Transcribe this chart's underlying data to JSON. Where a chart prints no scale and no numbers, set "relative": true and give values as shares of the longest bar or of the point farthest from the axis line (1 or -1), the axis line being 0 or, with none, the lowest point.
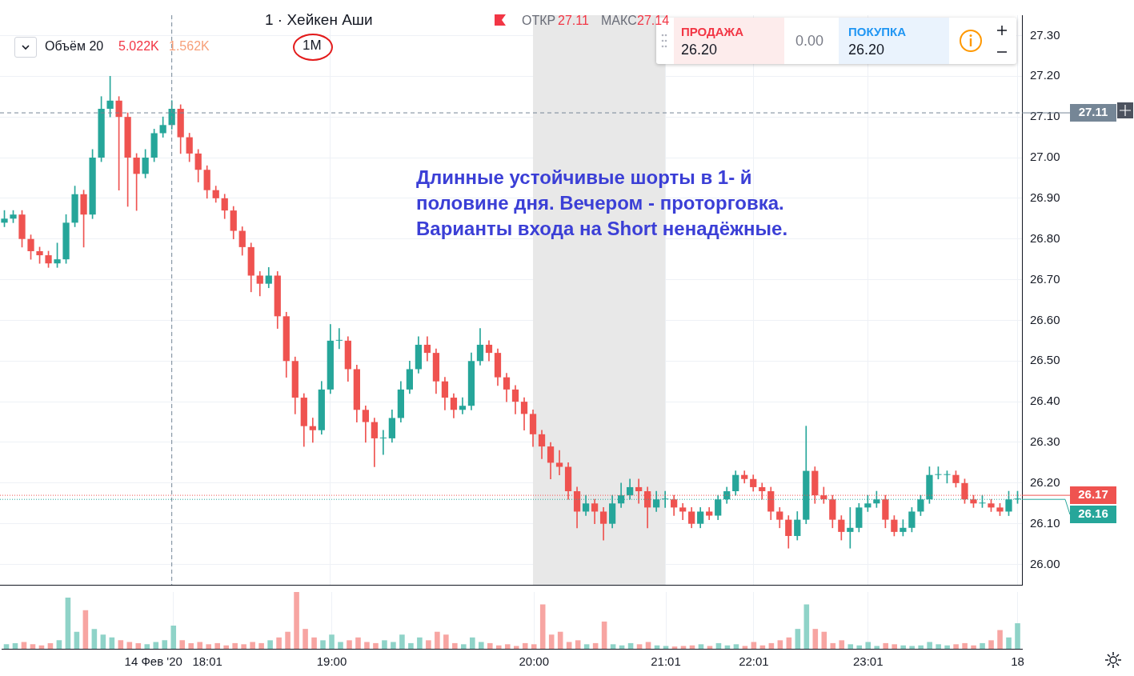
{
  "chart_data": [
    {
      "type": "candlestick",
      "categories": [
        null,
        null,
        null,
        null,
        null,
        null,
        null,
        null,
        null,
        null,
        null,
        null,
        null,
        null,
        null,
        null,
        null,
        null,
        null,
        "14 Фев '20   18:01",
        null,
        null,
        null,
        null,
        null,
        null,
        null,
        null,
        null,
        null,
        null,
        null,
        null,
        null,
        null,
        null,
        null,
        "19:00",
        null,
        null,
        null,
        null,
        null,
        null,
        null,
        null,
        null,
        null,
        null,
        null,
        null,
        null,
        null,
        null,
        null,
        null,
        null,
        null,
        null,
        null,
        "20:00",
        null,
        null,
        null,
        null,
        null,
        null,
        null,
        null,
        null,
        null,
        null,
        null,
        null,
        null,
        "21:01",
        null,
        null,
        null,
        null,
        null,
        null,
        null,
        null,
        null,
        "22:01",
        null,
        null,
        null,
        null,
        null,
        null,
        null,
        null,
        null,
        null,
        null,
        null,
        "23:01",
        null,
        null,
        null,
        null,
        null,
        null,
        null,
        null,
        null,
        null,
        null,
        null,
        null,
        null,
        null,
        null,
        "18"
      ],
      "ohlc": [
        [
          26.84,
          26.87,
          26.83,
          26.85
        ],
        [
          26.85,
          26.87,
          26.84,
          26.86
        ],
        [
          26.86,
          26.87,
          26.78,
          26.8
        ],
        [
          26.8,
          26.81,
          26.75,
          26.77
        ],
        [
          26.77,
          26.78,
          26.74,
          26.76
        ],
        [
          26.76,
          26.77,
          26.73,
          26.74
        ],
        [
          26.74,
          26.79,
          26.73,
          26.75
        ],
        [
          26.75,
          26.86,
          26.74,
          26.84
        ],
        [
          26.84,
          26.93,
          26.83,
          26.91
        ],
        [
          26.91,
          26.92,
          26.78,
          26.86
        ],
        [
          26.86,
          27.02,
          26.85,
          27.0
        ],
        [
          27.0,
          27.15,
          26.99,
          27.12
        ],
        [
          27.12,
          27.2,
          27.1,
          27.14
        ],
        [
          27.14,
          27.15,
          26.92,
          27.1
        ],
        [
          27.1,
          27.11,
          26.88,
          27.0
        ],
        [
          27.0,
          27.01,
          26.87,
          26.96
        ],
        [
          26.96,
          27.02,
          26.95,
          27.0
        ],
        [
          27.0,
          27.07,
          26.99,
          27.06
        ],
        [
          27.06,
          27.1,
          27.05,
          27.08
        ],
        [
          27.08,
          27.14,
          27.07,
          27.12
        ],
        [
          27.12,
          27.13,
          27.01,
          27.05
        ],
        [
          27.05,
          27.06,
          26.99,
          27.01
        ],
        [
          27.01,
          27.02,
          26.94,
          26.97
        ],
        [
          26.97,
          26.98,
          26.9,
          26.92
        ],
        [
          26.92,
          26.93,
          26.89,
          26.9
        ],
        [
          26.9,
          26.91,
          26.85,
          26.87
        ],
        [
          26.87,
          26.88,
          26.8,
          26.82
        ],
        [
          26.82,
          26.83,
          26.76,
          26.78
        ],
        [
          26.78,
          26.79,
          26.67,
          26.71
        ],
        [
          26.71,
          26.72,
          26.66,
          26.69
        ],
        [
          26.69,
          26.73,
          26.68,
          26.71
        ],
        [
          26.71,
          26.72,
          26.58,
          26.61
        ],
        [
          26.61,
          26.62,
          26.46,
          26.5
        ],
        [
          26.5,
          26.51,
          26.37,
          26.41
        ],
        [
          26.41,
          26.42,
          26.29,
          26.34
        ],
        [
          26.34,
          26.36,
          26.3,
          26.33
        ],
        [
          26.33,
          26.45,
          26.32,
          26.43
        ],
        [
          26.43,
          26.59,
          26.42,
          26.55
        ],
        [
          26.55,
          26.58,
          26.53,
          26.55
        ],
        [
          26.55,
          26.56,
          26.45,
          26.48
        ],
        [
          26.48,
          26.49,
          26.35,
          26.38
        ],
        [
          26.38,
          26.39,
          26.3,
          26.35
        ],
        [
          26.35,
          26.36,
          26.24,
          26.31
        ],
        [
          26.31,
          26.33,
          26.27,
          26.31
        ],
        [
          26.31,
          26.38,
          26.3,
          26.36
        ],
        [
          26.36,
          26.45,
          26.35,
          26.43
        ],
        [
          26.43,
          26.5,
          26.42,
          26.48
        ],
        [
          26.48,
          26.56,
          26.47,
          26.54
        ],
        [
          26.54,
          26.56,
          26.5,
          26.52
        ],
        [
          26.52,
          26.53,
          26.42,
          26.45
        ],
        [
          26.45,
          26.46,
          26.38,
          26.41
        ],
        [
          26.41,
          26.42,
          26.36,
          26.38
        ],
        [
          26.38,
          26.41,
          26.37,
          26.39
        ],
        [
          26.39,
          26.52,
          26.38,
          26.5
        ],
        [
          26.5,
          26.58,
          26.49,
          26.54
        ],
        [
          26.54,
          26.55,
          26.5,
          26.52
        ],
        [
          26.52,
          26.53,
          26.44,
          26.46
        ],
        [
          26.46,
          26.47,
          26.4,
          26.43
        ],
        [
          26.43,
          26.44,
          26.37,
          26.4
        ],
        [
          26.4,
          26.41,
          26.33,
          26.37
        ],
        [
          26.37,
          26.38,
          26.29,
          26.32
        ],
        [
          26.32,
          26.33,
          26.26,
          26.29
        ],
        [
          26.29,
          26.3,
          26.21,
          26.25
        ],
        [
          26.25,
          26.28,
          26.22,
          26.24
        ],
        [
          26.24,
          26.25,
          26.16,
          26.18
        ],
        [
          26.18,
          26.19,
          26.09,
          26.13
        ],
        [
          26.13,
          26.17,
          26.12,
          26.15
        ],
        [
          26.15,
          26.16,
          26.1,
          26.13
        ],
        [
          26.13,
          26.14,
          26.06,
          26.1
        ],
        [
          26.1,
          26.17,
          26.09,
          26.15
        ],
        [
          26.15,
          26.2,
          26.14,
          26.17
        ],
        [
          26.17,
          26.21,
          26.16,
          26.19
        ],
        [
          26.19,
          26.21,
          26.15,
          26.18
        ],
        [
          26.18,
          26.19,
          26.09,
          26.14
        ],
        [
          26.14,
          26.18,
          26.13,
          26.16
        ],
        [
          26.16,
          26.18,
          26.14,
          26.16
        ],
        [
          26.16,
          26.17,
          26.12,
          26.14
        ],
        [
          26.14,
          26.15,
          26.11,
          26.13
        ],
        [
          26.13,
          26.14,
          26.09,
          26.1
        ],
        [
          26.1,
          26.14,
          26.09,
          26.13
        ],
        [
          26.13,
          26.14,
          26.11,
          26.12
        ],
        [
          26.12,
          26.17,
          26.11,
          26.16
        ],
        [
          26.16,
          26.19,
          26.15,
          26.18
        ],
        [
          26.18,
          26.23,
          26.17,
          26.22
        ],
        [
          26.22,
          26.23,
          26.2,
          26.21
        ],
        [
          26.21,
          26.22,
          26.18,
          26.19
        ],
        [
          26.19,
          26.2,
          26.16,
          26.18
        ],
        [
          26.18,
          26.19,
          26.11,
          26.13
        ],
        [
          26.13,
          26.14,
          26.09,
          26.11
        ],
        [
          26.11,
          26.12,
          26.04,
          26.07
        ],
        [
          26.07,
          26.13,
          26.06,
          26.11
        ],
        [
          26.11,
          26.34,
          26.1,
          26.23
        ],
        [
          26.23,
          26.24,
          26.15,
          26.17
        ],
        [
          26.17,
          26.19,
          26.15,
          26.16
        ],
        [
          26.16,
          26.17,
          26.09,
          26.11
        ],
        [
          26.11,
          26.12,
          26.06,
          26.08
        ],
        [
          26.08,
          26.14,
          26.04,
          26.09
        ],
        [
          26.09,
          26.15,
          26.08,
          26.14
        ],
        [
          26.14,
          26.17,
          26.13,
          26.15
        ],
        [
          26.15,
          26.18,
          26.14,
          26.16
        ],
        [
          26.16,
          26.17,
          26.09,
          26.11
        ],
        [
          26.11,
          26.12,
          26.07,
          26.08
        ],
        [
          26.08,
          26.11,
          26.07,
          26.09
        ],
        [
          26.09,
          26.14,
          26.08,
          26.13
        ],
        [
          26.13,
          26.17,
          26.12,
          26.16
        ],
        [
          26.16,
          26.24,
          26.15,
          26.22
        ],
        [
          26.22,
          26.24,
          26.21,
          26.22
        ],
        [
          26.22,
          26.23,
          26.2,
          26.22
        ],
        [
          26.22,
          26.23,
          26.19,
          26.2
        ],
        [
          26.2,
          26.21,
          26.15,
          26.16
        ],
        [
          26.16,
          26.17,
          26.14,
          26.15
        ],
        [
          26.15,
          26.17,
          26.14,
          26.15
        ],
        [
          26.15,
          26.16,
          26.13,
          26.14
        ],
        [
          26.14,
          26.15,
          26.12,
          26.13
        ],
        [
          26.13,
          26.18,
          26.12,
          26.16
        ],
        [
          26.16,
          26.18,
          26.15,
          26.16
        ]
      ],
      "colors": [
        "#26a69a",
        "#26a69a",
        "#ef5350",
        "#ef5350",
        "#ef5350",
        "#ef5350",
        "#26a69a",
        "#26a69a",
        "#26a69a",
        "#ef5350",
        "#26a69a",
        "#26a69a",
        "#26a69a",
        "#ef5350",
        "#ef5350",
        "#ef5350",
        "#26a69a",
        "#26a69a",
        "#26a69a",
        "#26a69a",
        "#ef5350",
        "#ef5350",
        "#ef5350",
        "#ef5350",
        "#ef5350",
        "#ef5350",
        "#ef5350",
        "#ef5350",
        "#ef5350",
        "#ef5350",
        "#26a69a",
        "#ef5350",
        "#ef5350",
        "#ef5350",
        "#ef5350",
        "#ef5350",
        "#26a69a",
        "#26a69a",
        "#26a69a",
        "#ef5350",
        "#ef5350",
        "#ef5350",
        "#ef5350",
        "#26a69a",
        "#26a69a",
        "#26a69a",
        "#26a69a",
        "#26a69a",
        "#ef5350",
        "#ef5350",
        "#ef5350",
        "#ef5350",
        "#26a69a",
        "#26a69a",
        "#26a69a",
        "#ef5350",
        "#ef5350",
        "#ef5350",
        "#ef5350",
        "#ef5350",
        "#ef5350",
        "#ef5350",
        "#ef5350",
        "#ef5350",
        "#ef5350",
        "#ef5350",
        "#26a69a",
        "#ef5350",
        "#ef5350",
        "#26a69a",
        "#26a69a",
        "#26a69a",
        "#ef5350",
        "#ef5350",
        "#26a69a",
        "#26a69a",
        "#ef5350",
        "#ef5350",
        "#ef5350",
        "#26a69a",
        "#ef5350",
        "#26a69a",
        "#26a69a",
        "#26a69a",
        "#ef5350",
        "#ef5350",
        "#ef5350",
        "#ef5350",
        "#ef5350",
        "#ef5350",
        "#26a69a",
        "#26a69a",
        "#ef5350",
        "#ef5350",
        "#ef5350",
        "#ef5350",
        "#26a69a",
        "#26a69a",
        "#26a69a",
        "#26a69a",
        "#ef5350",
        "#ef5350",
        "#26a69a",
        "#26a69a",
        "#26a69a",
        "#26a69a",
        "#26a69a",
        "#26a69a",
        "#ef5350",
        "#ef5350",
        "#ef5350",
        "#26a69a",
        "#ef5350",
        "#ef5350",
        "#26a69a",
        "#26a69a"
      ],
      "ylim": [
        25.95,
        27.35
      ],
      "yticks": [
        {
          "value": 26,
          "label": "26.00"
        },
        {
          "value": 26.1,
          "label": "26.10"
        },
        {
          "value": 26.2,
          "label": "26.20"
        },
        {
          "value": 26.3,
          "label": "26.30"
        },
        {
          "value": 26.4,
          "label": "26.40"
        },
        {
          "value": 26.5,
          "label": "26.50"
        },
        {
          "value": 26.6,
          "label": "26.60"
        },
        {
          "value": 26.7,
          "label": "26.70"
        },
        {
          "value": 26.8,
          "label": "26.80"
        },
        {
          "value": 26.9,
          "label": "26.90"
        },
        {
          "value": 27,
          "label": "27.00"
        },
        {
          "value": 27.1,
          "label": "27.10"
        },
        {
          "value": 27.2,
          "label": "27.20"
        },
        {
          "value": 27.3,
          "label": "27.30"
        }
      ],
      "grid": true,
      "tick_labels": "y",
      "ref_lines": [
        {
          "axis": "y",
          "value": 27.11,
          "label": "27.11",
          "color": "#758696",
          "line_style": "dashed"
        },
        {
          "axis": "x",
          "value": "14 Фев '20   18:01",
          "color": "#758696",
          "line_style": "dashed"
        },
        {
          "axis": "y",
          "value": 26.17,
          "label": "26.17",
          "color": "#ef5350",
          "line_style": "dotted"
        },
        {
          "axis": "y",
          "value": 26.16,
          "label": "26.16",
          "color": "#26a69a",
          "line_style": "dotted"
        }
      ],
      "bands": [
        {
          "axis": "x",
          "from": "20:00",
          "to": "21:01",
          "color": "#e8e8e8"
        }
      ],
      "annotations": [
        "1 · Хейкен Аши",
        "ОТКР",
        "27.11",
        "МАКС",
        "27.14",
        "Объём 20",
        "5.022K",
        "1.562K",
        "1M",
        "ПРОДАЖА",
        "26.20",
        "0.00",
        "ПОКУПКА",
        "26.20",
        "Длинные устойчивые шорты в 1- й половине дня. Вечером - проторговка. Варианты входа на Short ненадёжные."
      ]
    },
    {
      "type": "bar",
      "relative": true,
      "tick_labels": "x",
      "grid": "x",
      "categories": [
        null,
        null,
        null,
        null,
        null,
        null,
        null,
        null,
        null,
        null,
        null,
        null,
        null,
        null,
        null,
        null,
        null,
        null,
        null,
        "14 Фев '20   18:01",
        null,
        null,
        null,
        null,
        null,
        null,
        null,
        null,
        null,
        null,
        null,
        null,
        null,
        null,
        null,
        null,
        null,
        "19:00",
        null,
        null,
        null,
        null,
        null,
        null,
        null,
        null,
        null,
        null,
        null,
        null,
        null,
        null,
        null,
        null,
        null,
        null,
        null,
        null,
        null,
        null,
        "20:00",
        null,
        null,
        null,
        null,
        null,
        null,
        null,
        null,
        null,
        null,
        null,
        null,
        null,
        null,
        "21:01",
        null,
        null,
        null,
        null,
        null,
        null,
        null,
        null,
        null,
        "22:01",
        null,
        null,
        null,
        null,
        null,
        null,
        null,
        null,
        null,
        null,
        null,
        null,
        "23:01",
        null,
        null,
        null,
        null,
        null,
        null,
        null,
        null,
        null,
        null,
        null,
        null,
        null,
        null,
        null,
        null,
        "18"
      ],
      "values": [
        0.08,
        0.1,
        0.12,
        0.08,
        0.06,
        0.1,
        0.15,
        0.9,
        0.3,
        0.68,
        0.35,
        0.25,
        0.2,
        0.15,
        0.12,
        0.1,
        0.08,
        0.12,
        0.15,
        0.41,
        0.15,
        0.1,
        0.12,
        0.08,
        0.1,
        0.06,
        0.1,
        0.08,
        0.12,
        0.1,
        0.15,
        0.2,
        0.3,
        1.0,
        0.35,
        0.2,
        0.15,
        0.25,
        0.12,
        0.15,
        0.2,
        0.12,
        0.1,
        0.15,
        0.12,
        0.25,
        0.1,
        0.2,
        0.15,
        0.3,
        0.25,
        0.1,
        0.08,
        0.2,
        0.12,
        0.1,
        0.06,
        0.08,
        0.05,
        0.1,
        0.08,
        0.78,
        0.25,
        0.3,
        0.12,
        0.15,
        0.08,
        0.1,
        0.48,
        0.08,
        0.06,
        0.1,
        0.08,
        0.12,
        0.06,
        0.05,
        0.04,
        0.05,
        0.06,
        0.08,
        0.05,
        0.1,
        0.06,
        0.08,
        0.05,
        0.12,
        0.06,
        0.1,
        0.15,
        0.2,
        0.35,
        0.78,
        0.35,
        0.3,
        0.1,
        0.15,
        0.08,
        0.06,
        0.12,
        0.05,
        0.1,
        0.08,
        0.06,
        0.05,
        0.06,
        0.12,
        0.08,
        0.06,
        0.08,
        0.1,
        0.06,
        0.1,
        0.15,
        0.33,
        0.2,
        0.45
      ],
      "colors": [
        "#8fd3c8",
        "#8fd3c8",
        "#f7a5a2",
        "#f7a5a2",
        "#f7a5a2",
        "#f7a5a2",
        "#8fd3c8",
        "#8fd3c8",
        "#8fd3c8",
        "#f7a5a2",
        "#8fd3c8",
        "#8fd3c8",
        "#8fd3c8",
        "#f7a5a2",
        "#f7a5a2",
        "#f7a5a2",
        "#8fd3c8",
        "#8fd3c8",
        "#8fd3c8",
        "#8fd3c8",
        "#f7a5a2",
        "#f7a5a2",
        "#f7a5a2",
        "#f7a5a2",
        "#f7a5a2",
        "#f7a5a2",
        "#f7a5a2",
        "#f7a5a2",
        "#f7a5a2",
        "#f7a5a2",
        "#8fd3c8",
        "#f7a5a2",
        "#f7a5a2",
        "#f7a5a2",
        "#f7a5a2",
        "#f7a5a2",
        "#8fd3c8",
        "#8fd3c8",
        "#8fd3c8",
        "#f7a5a2",
        "#f7a5a2",
        "#f7a5a2",
        "#f7a5a2",
        "#8fd3c8",
        "#8fd3c8",
        "#8fd3c8",
        "#8fd3c8",
        "#8fd3c8",
        "#f7a5a2",
        "#f7a5a2",
        "#f7a5a2",
        "#f7a5a2",
        "#8fd3c8",
        "#8fd3c8",
        "#8fd3c8",
        "#f7a5a2",
        "#f7a5a2",
        "#f7a5a2",
        "#f7a5a2",
        "#f7a5a2",
        "#f7a5a2",
        "#f7a5a2",
        "#f7a5a2",
        "#f7a5a2",
        "#f7a5a2",
        "#f7a5a2",
        "#8fd3c8",
        "#f7a5a2",
        "#f7a5a2",
        "#8fd3c8",
        "#8fd3c8",
        "#8fd3c8",
        "#f7a5a2",
        "#f7a5a2",
        "#8fd3c8",
        "#8fd3c8",
        "#f7a5a2",
        "#f7a5a2",
        "#f7a5a2",
        "#8fd3c8",
        "#f7a5a2",
        "#8fd3c8",
        "#8fd3c8",
        "#8fd3c8",
        "#f7a5a2",
        "#f7a5a2",
        "#f7a5a2",
        "#f7a5a2",
        "#f7a5a2",
        "#f7a5a2",
        "#8fd3c8",
        "#8fd3c8",
        "#f7a5a2",
        "#f7a5a2",
        "#f7a5a2",
        "#f7a5a2",
        "#8fd3c8",
        "#8fd3c8",
        "#8fd3c8",
        "#8fd3c8",
        "#f7a5a2",
        "#f7a5a2",
        "#8fd3c8",
        "#8fd3c8",
        "#8fd3c8",
        "#8fd3c8",
        "#8fd3c8",
        "#8fd3c8",
        "#f7a5a2",
        "#f7a5a2",
        "#f7a5a2",
        "#8fd3c8",
        "#f7a5a2",
        "#f7a5a2",
        "#8fd3c8",
        "#8fd3c8"
      ]
    }
  ]
}
